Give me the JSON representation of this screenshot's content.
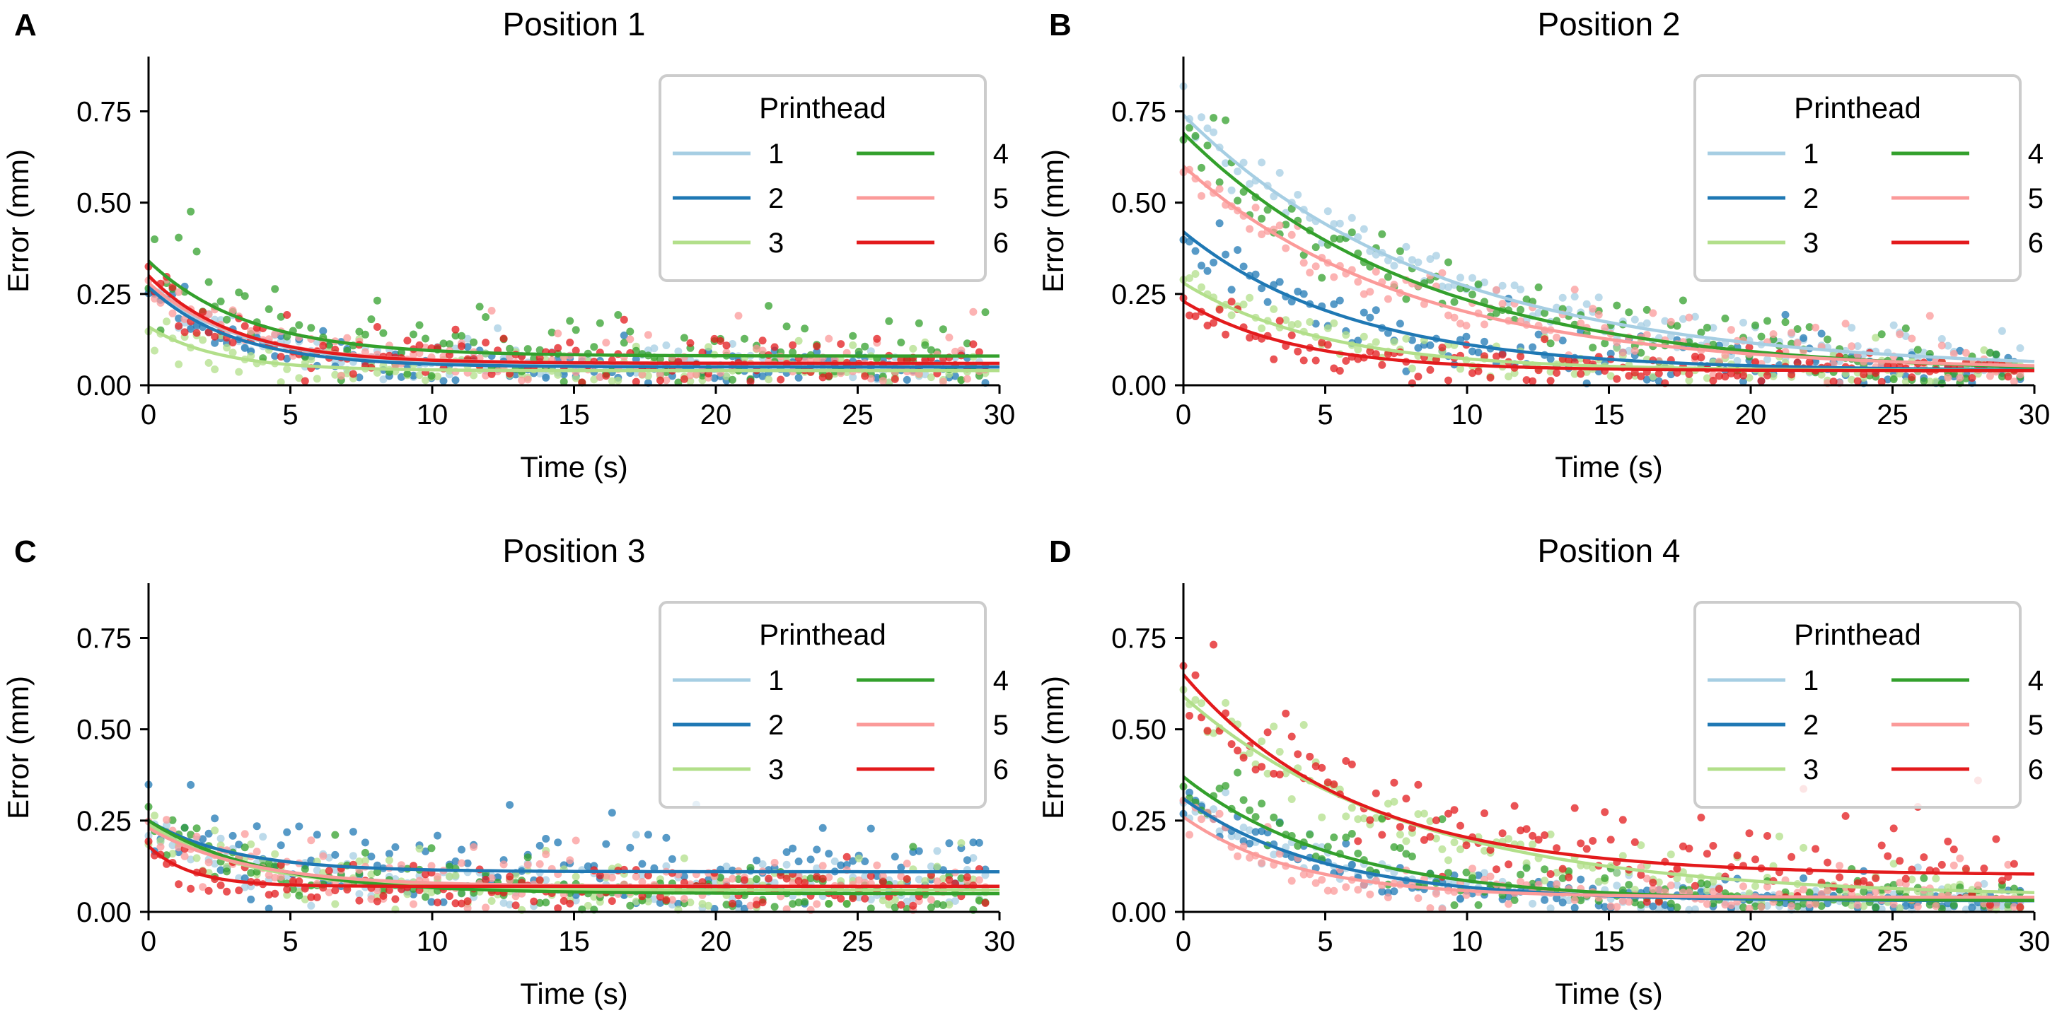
{
  "figure": {
    "common": {
      "xlabel": "Time (s)",
      "ylabel": "Error (mm)",
      "xlim": [
        0,
        30
      ],
      "ylim": [
        0,
        0.9
      ],
      "xticks": [
        0,
        5,
        10,
        15,
        20,
        25,
        30
      ],
      "yticks": [
        0.0,
        0.25,
        0.5,
        0.75
      ],
      "xtick_labels": [
        "0",
        "5",
        "10",
        "15",
        "20",
        "25",
        "30"
      ],
      "ytick_labels": [
        "0.00",
        "0.25",
        "0.50",
        "0.75"
      ],
      "grid": false,
      "legend_title": "Printhead",
      "legend_placement": "top-right",
      "legend_columns": 2
    },
    "printheads": [
      {
        "name": "1",
        "color": "#a6cee3"
      },
      {
        "name": "2",
        "color": "#1f78b4"
      },
      {
        "name": "3",
        "color": "#b2df8a"
      },
      {
        "name": "4",
        "color": "#33a02c"
      },
      {
        "name": "5",
        "color": "#fb9a99"
      },
      {
        "name": "6",
        "color": "#e31a1c"
      }
    ]
  },
  "chart_data": [
    {
      "type": "scatter",
      "panel_letter": "A",
      "title": "Position 1",
      "xlabel": "Time (s)",
      "ylabel": "Error (mm)",
      "xlim": [
        0,
        30
      ],
      "ylim": [
        0,
        0.9
      ],
      "series": [
        {
          "name": "1",
          "color": "#a6cee3",
          "fit": {
            "a": 0.22,
            "tau": 3.5,
            "c": 0.05
          },
          "noise": 0.03
        },
        {
          "name": "2",
          "color": "#1f78b4",
          "fit": {
            "a": 0.22,
            "tau": 3.0,
            "c": 0.05
          },
          "noise": 0.03
        },
        {
          "name": "3",
          "color": "#b2df8a",
          "fit": {
            "a": 0.12,
            "tau": 2.5,
            "c": 0.04
          },
          "noise": 0.03
        },
        {
          "name": "4",
          "color": "#33a02c",
          "fit": {
            "a": 0.26,
            "tau": 3.5,
            "c": 0.08
          },
          "noise": 0.07
        },
        {
          "name": "5",
          "color": "#fb9a99",
          "fit": {
            "a": 0.22,
            "tau": 3.2,
            "c": 0.06
          },
          "noise": 0.04
        },
        {
          "name": "6",
          "color": "#e31a1c",
          "fit": {
            "a": 0.24,
            "tau": 3.0,
            "c": 0.06
          },
          "noise": 0.04
        }
      ]
    },
    {
      "type": "scatter",
      "panel_letter": "B",
      "title": "Position 2",
      "xlabel": "Time (s)",
      "ylabel": "Error (mm)",
      "xlim": [
        0,
        30
      ],
      "ylim": [
        0,
        0.9
      ],
      "series": [
        {
          "name": "1",
          "color": "#a6cee3",
          "fit": {
            "a": 0.7,
            "tau": 9.0,
            "c": 0.04
          },
          "noise": 0.04
        },
        {
          "name": "2",
          "color": "#1f78b4",
          "fit": {
            "a": 0.38,
            "tau": 6.0,
            "c": 0.04
          },
          "noise": 0.05
        },
        {
          "name": "3",
          "color": "#b2df8a",
          "fit": {
            "a": 0.24,
            "tau": 5.0,
            "c": 0.04
          },
          "noise": 0.03
        },
        {
          "name": "4",
          "color": "#33a02c",
          "fit": {
            "a": 0.66,
            "tau": 8.5,
            "c": 0.03
          },
          "noise": 0.05
        },
        {
          "name": "5",
          "color": "#fb9a99",
          "fit": {
            "a": 0.56,
            "tau": 8.0,
            "c": 0.04
          },
          "noise": 0.04
        },
        {
          "name": "6",
          "color": "#e31a1c",
          "fit": {
            "a": 0.19,
            "tau": 4.0,
            "c": 0.04
          },
          "noise": 0.03
        }
      ]
    },
    {
      "type": "scatter",
      "panel_letter": "C",
      "title": "Position 3",
      "xlabel": "Time (s)",
      "ylabel": "Error (mm)",
      "xlim": [
        0,
        30
      ],
      "ylim": [
        0,
        0.9
      ],
      "series": [
        {
          "name": "1",
          "color": "#a6cee3",
          "fit": {
            "a": 0.16,
            "tau": 3.5,
            "c": 0.07
          },
          "noise": 0.04
        },
        {
          "name": "2",
          "color": "#1f78b4",
          "fit": {
            "a": 0.14,
            "tau": 3.0,
            "c": 0.11
          },
          "noise": 0.07
        },
        {
          "name": "3",
          "color": "#b2df8a",
          "fit": {
            "a": 0.18,
            "tau": 3.5,
            "c": 0.06
          },
          "noise": 0.04
        },
        {
          "name": "4",
          "color": "#33a02c",
          "fit": {
            "a": 0.2,
            "tau": 4.0,
            "c": 0.05
          },
          "noise": 0.04
        },
        {
          "name": "5",
          "color": "#fb9a99",
          "fit": {
            "a": 0.16,
            "tau": 3.5,
            "c": 0.07
          },
          "noise": 0.04
        },
        {
          "name": "6",
          "color": "#e31a1c",
          "fit": {
            "a": 0.11,
            "tau": 1.5,
            "c": 0.07
          },
          "noise": 0.04
        }
      ]
    },
    {
      "type": "scatter",
      "panel_letter": "D",
      "title": "Position 4",
      "xlabel": "Time (s)",
      "ylabel": "Error (mm)",
      "xlim": [
        0,
        30
      ],
      "ylim": [
        0,
        0.9
      ],
      "series": [
        {
          "name": "1",
          "color": "#a6cee3",
          "fit": {
            "a": 0.28,
            "tau": 5.0,
            "c": 0.03
          },
          "noise": 0.03
        },
        {
          "name": "2",
          "color": "#1f78b4",
          "fit": {
            "a": 0.28,
            "tau": 5.0,
            "c": 0.03
          },
          "noise": 0.03
        },
        {
          "name": "3",
          "color": "#b2df8a",
          "fit": {
            "a": 0.55,
            "tau": 8.0,
            "c": 0.04
          },
          "noise": 0.05
        },
        {
          "name": "4",
          "color": "#33a02c",
          "fit": {
            "a": 0.34,
            "tau": 5.5,
            "c": 0.03
          },
          "noise": 0.04
        },
        {
          "name": "5",
          "color": "#fb9a99",
          "fit": {
            "a": 0.22,
            "tau": 4.0,
            "c": 0.04
          },
          "noise": 0.03
        },
        {
          "name": "6",
          "color": "#e31a1c",
          "fit": {
            "a": 0.55,
            "tau": 6.0,
            "c": 0.1
          },
          "noise": 0.07
        }
      ]
    }
  ]
}
